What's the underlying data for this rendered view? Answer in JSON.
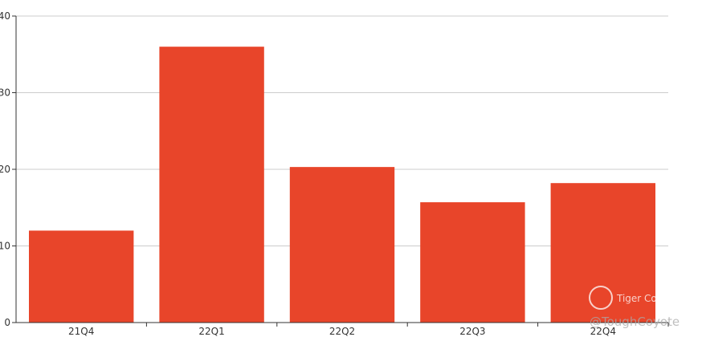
{
  "chart_data": {
    "type": "bar",
    "categories": [
      "21Q4",
      "22Q1",
      "22Q2",
      "22Q3",
      "22Q4"
    ],
    "values": [
      12.0,
      36.0,
      20.3,
      15.7,
      18.2
    ],
    "ylim": [
      0,
      40
    ],
    "yticks": [
      0,
      10,
      20,
      30,
      40
    ],
    "grid": true,
    "bar_color": "#e8452a"
  },
  "watermark": {
    "brand": "Tiger Community",
    "user": "@ToughCoyote"
  }
}
